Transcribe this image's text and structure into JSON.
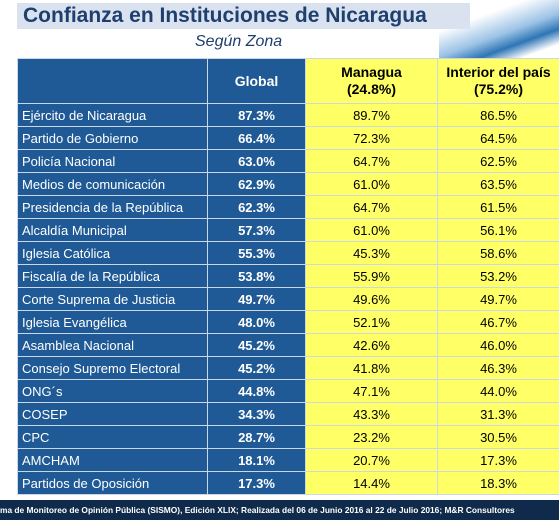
{
  "header": {
    "title": "Confianza en Instituciones de Nicaragua",
    "subtitle": "Según Zona"
  },
  "table": {
    "columns": {
      "global": "Global",
      "managua": {
        "name": "Managua",
        "share": "(24.8%)"
      },
      "interior": {
        "name": "Interior del país",
        "share": "(75.2%)"
      }
    },
    "rows": [
      [
        "Ejército de Nicaragua",
        "87.3%",
        "89.7%",
        "86.5%"
      ],
      [
        "Partido de Gobierno",
        "66.4%",
        "72.3%",
        "64.5%"
      ],
      [
        "Policía Nacional",
        "63.0%",
        "64.7%",
        "62.5%"
      ],
      [
        "Medios de comunicación",
        "62.9%",
        "61.0%",
        "63.5%"
      ],
      [
        "Presidencia de la República",
        "62.3%",
        "64.7%",
        "61.5%"
      ],
      [
        "Alcaldía Municipal",
        "57.3%",
        "61.0%",
        "56.1%"
      ],
      [
        "Iglesia Católica",
        "55.3%",
        "45.3%",
        "58.6%"
      ],
      [
        "Fiscalía de la República",
        "53.8%",
        "55.9%",
        "53.2%"
      ],
      [
        "Corte Suprema de Justicia",
        "49.7%",
        "49.6%",
        "49.7%"
      ],
      [
        "Iglesia Evangélica",
        "48.0%",
        "52.1%",
        "46.7%"
      ],
      [
        "Asamblea Nacional",
        "45.2%",
        "42.6%",
        "46.0%"
      ],
      [
        "Consejo Supremo Electoral",
        "45.2%",
        "41.8%",
        "46.3%"
      ],
      [
        "ONG´s",
        "44.8%",
        "47.1%",
        "44.0%"
      ],
      [
        "COSEP",
        "34.3%",
        "43.3%",
        "31.3%"
      ],
      [
        "CPC",
        "28.7%",
        "23.2%",
        "30.5%"
      ],
      [
        "AMCHAM",
        "18.1%",
        "20.7%",
        "17.3%"
      ],
      [
        "Partidos de Oposición",
        "17.3%",
        "14.4%",
        "18.3%"
      ]
    ]
  },
  "footer": {
    "text": "ma de Monitoreo de Opinión Pública (SISMO), Edición XLIX; Realizada del  06 de Junio 2016 al 22 de Julio 2016; M&R Consultores"
  }
}
